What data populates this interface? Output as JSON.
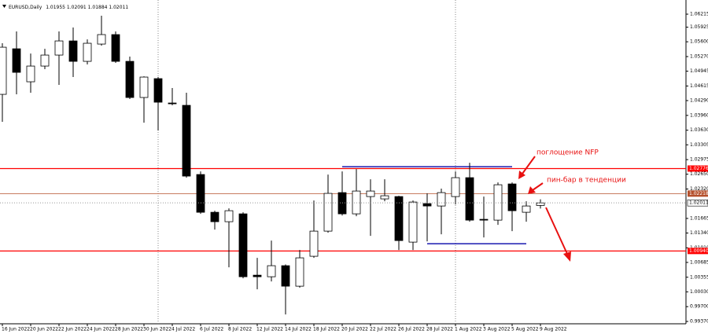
{
  "chart_data": {
    "type": "candlestick",
    "symbol": "EURUSD,Daily",
    "categories": [
      "16 Jun 2022",
      null,
      "20 Jun 2022",
      null,
      "22 Jun 2022",
      null,
      "24 Jun 2022",
      null,
      "28 Jun 2022",
      null,
      "30 Jun 2022",
      null,
      "4 Jul 2022",
      null,
      "6 Jul 2022",
      null,
      "8 Jul 2022",
      null,
      "12 Jul 2022",
      null,
      "14 Jul 2022",
      null,
      "18 Jul 2022",
      null,
      "20 Jul 2022",
      null,
      "22 Jul 2022",
      null,
      "26 Jul 2022",
      null,
      "28 Jul 2022",
      null,
      "1 Aug 2022",
      null,
      "3 Aug 2022",
      null,
      "5 Aug 2022",
      null,
      "9 Aug 2022"
    ],
    "open": [
      1.04429,
      1.05444,
      1.04709,
      1.05059,
      1.05304,
      1.05619,
      1.05164,
      1.05549,
      1.0576,
      1.05164,
      1.04359,
      1.04779,
      1.04236,
      1.04184,
      1.02643,
      1.01802,
      1.01592,
      1.01767,
      1.00401,
      1.00366,
      1.00612,
      1.00156,
      1.00822,
      1.01382,
      1.0224,
      1.01767,
      1.02152,
      1.021,
      1.02152,
      1.01137,
      1.01995,
      1.01942,
      1.02152,
      1.02573,
      1.01645,
      1.01627,
      1.02433,
      1.01802,
      1.01955
    ],
    "high": [
      1.05567,
      1.0583,
      1.05339,
      1.05444,
      1.0583,
      1.05917,
      1.05654,
      1.0618,
      1.0583,
      1.05269,
      1.0483,
      1.04814,
      1.04569,
      1.04464,
      1.02713,
      1.01837,
      1.0189,
      1.01802,
      1.00787,
      1.01172,
      1.0064,
      1.00962,
      1.02065,
      1.02643,
      1.02713,
      1.02765,
      1.02538,
      1.02538,
      1.0217,
      1.02065,
      1.02223,
      1.02328,
      1.02713,
      1.02905,
      1.02152,
      1.02468,
      1.02468,
      1.02047,
      1.02091
    ],
    "low": [
      1.03816,
      1.04429,
      1.04464,
      1.04989,
      1.04639,
      1.04814,
      1.05094,
      1.05514,
      1.0513,
      1.04324,
      1.03798,
      1.03623,
      1.04184,
      1.02573,
      1.01767,
      1.01417,
      1.00577,
      1.00331,
      1.00086,
      1.00261,
      0.99526,
      1.00121,
      1.00787,
      1.01347,
      1.0173,
      1.01715,
      1.01277,
      1.02047,
      1.00962,
      1.00962,
      1.01154,
      1.01312,
      1.01977,
      1.01592,
      1.01242,
      1.01522,
      1.01382,
      1.01592,
      1.01884
    ],
    "close": [
      1.05479,
      1.04919,
      1.05059,
      1.05304,
      1.05619,
      1.05164,
      1.05567,
      1.0576,
      1.05164,
      1.04359,
      1.04814,
      1.04254,
      1.04219,
      1.02608,
      1.01802,
      1.01592,
      1.01837,
      1.00366,
      1.00366,
      1.00612,
      1.00156,
      1.00787,
      1.01382,
      1.02223,
      1.01767,
      1.02275,
      1.02275,
      1.0217,
      1.01172,
      1.0203,
      1.01942,
      1.0224,
      1.02573,
      1.01627,
      1.01627,
      1.02415,
      1.01837,
      1.01942,
      1.02011
    ],
    "ylim": [
      0.99318,
      1.06443
    ],
    "yticks": [
      1.06215,
      1.05925,
      {
        "value": 1.056,
        "label": "1.05600"
      },
      {
        "value": 1.0527,
        "label": "1.05270"
      },
      1.04945,
      1.04615,
      {
        "value": 1.0429,
        "label": "1.04290"
      },
      {
        "value": 1.0396,
        "label": "1.03960"
      },
      {
        "value": 1.0363,
        "label": "1.03630"
      },
      1.03305,
      1.02975,
      {
        "value": 1.0265,
        "label": "1.02650"
      },
      {
        "value": 1.0232,
        "label": "1.02320"
      },
      1.01665,
      {
        "value": 1.0134,
        "label": "1.01340"
      },
      {
        "value": 1.0101,
        "label": "1.01010"
      },
      1.00685,
      1.00355,
      {
        "value": 1.0003,
        "label": "1.00030"
      },
      {
        "value": 0.997,
        "label": "0.99700"
      },
      {
        "value": 0.9937,
        "label": "0.99370"
      }
    ],
    "grid": false,
    "up_color": "#ffffff",
    "down_color": "#000000",
    "levels": [
      {
        "value": 1.02776,
        "label": "1.02776",
        "color": "#ff0000"
      },
      {
        "value": 1.02218,
        "label": "1.02218",
        "color": "#b5502c"
      },
      {
        "value": 1.0094,
        "label": "1.00940",
        "color": "#ff0000"
      }
    ],
    "trendlines": [
      {
        "value": 1.02818,
        "from": 24,
        "to": 36,
        "color": "#1a1ab0"
      },
      {
        "value": 1.01102,
        "from": 30,
        "to": 37,
        "color": "#1a1ab0"
      }
    ],
    "annotations": [
      "поглощение NFP",
      "пин-бар в тенденции"
    ]
  }
}
